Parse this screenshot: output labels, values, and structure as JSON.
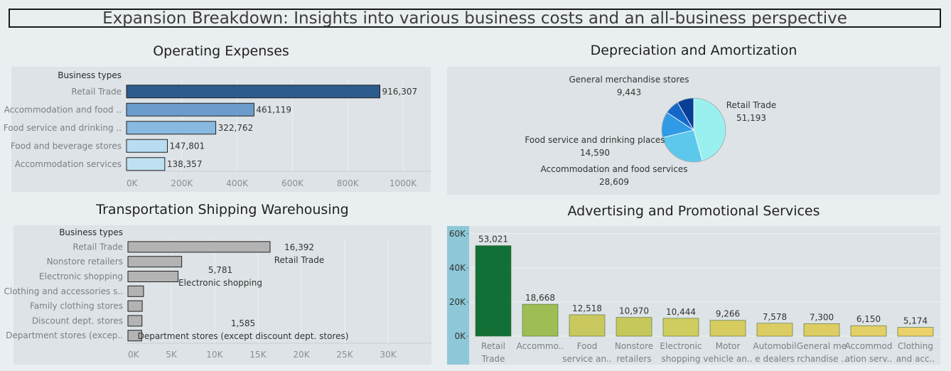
{
  "page_title": "Expansion Breakdown: Insights into various business costs and an all-business perspective",
  "panels": {
    "operating": "Operating Expenses",
    "depreciation": "Depreciation and Amortization",
    "transport": "Transportation Shipping Warehousing",
    "advertising": "Advertising and Promotional Services"
  },
  "chart_data": [
    {
      "id": "operating",
      "type": "bar",
      "orientation": "horizontal",
      "title": "Operating Expenses",
      "ylabel": "Business types",
      "categories": [
        "Retail Trade",
        "Accommodation and food ..",
        "Food service and drinking ..",
        "Food and beverage stores",
        "Accommodation services"
      ],
      "values": [
        916307,
        461119,
        322762,
        147801,
        138357
      ],
      "value_labels": [
        "916,307",
        "461,119",
        "322,762",
        "147,801",
        "138,357"
      ],
      "colors": [
        "#2c5a8c",
        "#6b9ccc",
        "#8ab9df",
        "#b8dcf1",
        "#bfe0f3"
      ],
      "xlim": [
        0,
        1100000
      ],
      "xticks": [
        0,
        200000,
        400000,
        600000,
        800000,
        1000000
      ],
      "xtick_labels": [
        "0K",
        "200K",
        "400K",
        "600K",
        "800K",
        "1000K"
      ]
    },
    {
      "id": "depreciation",
      "type": "pie",
      "title": "Depreciation and Amortization",
      "slices": [
        {
          "label": "Retail Trade",
          "value": 51193,
          "value_label": "51,193",
          "color": "#9af0ef"
        },
        {
          "label": "Accommodation and food services",
          "value": 28609,
          "value_label": "28,609",
          "color": "#5cc8ec"
        },
        {
          "label": "Food service and drinking places",
          "value": 14590,
          "value_label": "14,590",
          "color": "#2f9be6"
        },
        {
          "label": "",
          "value": 8200,
          "value_label": "",
          "color": "#1668c8"
        },
        {
          "label": "General merchandise stores",
          "value": 9443,
          "value_label": "9,443",
          "color": "#0a3e96"
        }
      ]
    },
    {
      "id": "transport",
      "type": "bar",
      "orientation": "horizontal",
      "title": "Transportation Shipping Warehousing",
      "ylabel": "Business types",
      "categories": [
        "Retail Trade",
        "Nonstore retailers",
        "Electronic shopping",
        "Clothing and accessories s..",
        "Family clothing stores",
        "Discount dept. stores",
        "Department stores (excep.."
      ],
      "values": [
        16392,
        6200,
        5781,
        1800,
        1650,
        1620,
        1585
      ],
      "annotations": [
        {
          "value": "16,392",
          "label": "Retail Trade"
        },
        {
          "value": "5,781",
          "label": "Electronic shopping"
        },
        {
          "value": "1,585",
          "label": "Department stores (except discount dept. stores)"
        }
      ],
      "color": "#b3b3b3",
      "xlim": [
        0,
        35000
      ],
      "xticks": [
        0,
        5000,
        10000,
        15000,
        20000,
        25000,
        30000
      ],
      "xtick_labels": [
        "0K",
        "5K",
        "10K",
        "15K",
        "20K",
        "25K",
        "30K"
      ]
    },
    {
      "id": "advertising",
      "type": "bar",
      "title": "Advertising and Promotional Services",
      "categories": [
        [
          "Retail",
          "Trade"
        ],
        [
          "Accommo..",
          ""
        ],
        [
          "Food",
          "service an.."
        ],
        [
          "Nonstore",
          "retailers"
        ],
        [
          "Electronic",
          "shopping"
        ],
        [
          "Motor",
          "vehicle an.."
        ],
        [
          "Automobil",
          "e dealers"
        ],
        [
          "General me",
          "rchandise .."
        ],
        [
          "Accommod",
          "ation serv.."
        ],
        [
          "Clothing",
          "and acc.."
        ]
      ],
      "values": [
        53021,
        18668,
        12518,
        10970,
        10444,
        9266,
        7578,
        7300,
        6150,
        5174
      ],
      "value_labels": [
        "53,021",
        "18,668",
        "12,518",
        "10,970",
        "10,444",
        "9,266",
        "7,578",
        "7,300",
        "6,150",
        "5,174"
      ],
      "colors": [
        "#127036",
        "#9ebe55",
        "#c9c85e",
        "#c6c85c",
        "#cfcd5f",
        "#d6cc60",
        "#dccd62",
        "#ddcd63",
        "#e2cf66",
        "#ecd068"
      ],
      "ylim": [
        0,
        62000
      ],
      "yticks": [
        0,
        20000,
        40000,
        60000
      ],
      "ytick_labels": [
        "0K",
        "20K",
        "40K",
        "60K"
      ]
    }
  ]
}
